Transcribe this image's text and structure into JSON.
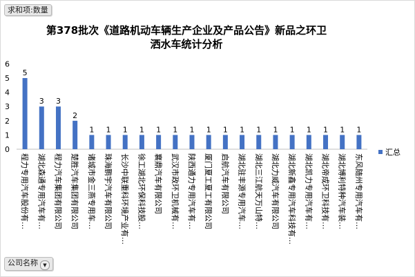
{
  "pivot": {
    "value_field": "求和项:数量",
    "axis_field": "公司名称",
    "axis_dropdown_glyph": "▼"
  },
  "chart_data": {
    "type": "bar",
    "title": "第378批次《道路机动车辆生产企业及产品公告》新品之环卫洒水车统计分析",
    "categories": [
      "程力专用汽车股份有…",
      "湖北森通专用汽车有…",
      "程力汽车集团有限公司",
      "楚胜汽车集团有限公司",
      "诸城市金三燕专用车…",
      "珠海鹏宇汽车有限公司",
      "长沙中联重科环境产业有…",
      "徐工湖北环保科技股…",
      "襄鼎汽车有限公司",
      "武汉市政环卫机械有…",
      "陕西通力专用汽车有…",
      "厦门夏工夏工有限公司",
      "启航汽车有限公司",
      "湖北驻丰源专用汽车…",
      "湖北三江航天万山特…",
      "湖北力威汽车有限公司",
      "湖北新鑫专用汽车科技有…",
      "湖北凯力专用汽车有…",
      "湖北帝成环卫科技有…",
      "湖北博利特种汽车装…",
      "东风随州专用汽车有…"
    ],
    "series": [
      {
        "name": "汇总",
        "values": [
          5,
          3,
          3,
          2,
          1,
          1,
          1,
          1,
          1,
          1,
          1,
          1,
          1,
          1,
          1,
          1,
          1,
          1,
          1,
          1,
          1
        ],
        "color": "#4472c4"
      }
    ],
    "yticks": [
      "0",
      "1",
      "2",
      "3",
      "4",
      "5",
      "6"
    ],
    "ylim": [
      0,
      6
    ],
    "grid": false,
    "data_labels": true,
    "legend_position": "right"
  }
}
